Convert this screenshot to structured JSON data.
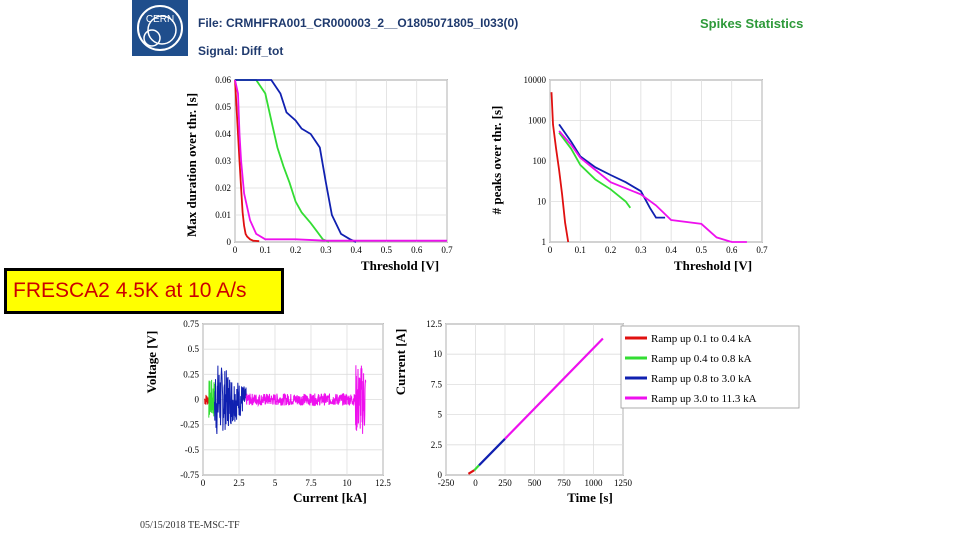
{
  "header": {
    "logo_text": "CERN",
    "file_label": "File: CRMHFRA001_CR000003_2__O1805071805_I033(0)",
    "signal_label": "Signal: Diff_tot",
    "title": "Spikes Statistics"
  },
  "banner": "FRESCA2 4.5K at 10 A/s",
  "footer": "05/15/2018  TE-MSC-TF",
  "colors": {
    "red": "#e01010",
    "green": "#33dd33",
    "blue": "#1020b0",
    "magenta": "#ee10ee"
  },
  "chart_data": [
    {
      "id": "duration",
      "type": "line",
      "xlabel": "Threshold [V]",
      "ylabel": "Max duration over thr. [s]",
      "xlim": [
        0,
        0.7
      ],
      "ylim": [
        0,
        0.06
      ],
      "xticks": [
        "0",
        "0.1",
        "0.2",
        "0.3",
        "0.4",
        "0.5",
        "0.6",
        "0.7"
      ],
      "yticks": [
        "0",
        "0.01",
        "0.02",
        "0.03",
        "0.04",
        "0.05",
        "0.06"
      ],
      "grid": true,
      "series": [
        {
          "color": "red",
          "x": [
            0,
            0.005,
            0.01,
            0.015,
            0.02,
            0.025,
            0.03,
            0.035,
            0.04,
            0.05,
            0.06,
            0.08
          ],
          "y": [
            0.06,
            0.05,
            0.04,
            0.03,
            0.02,
            0.011,
            0.006,
            0.003,
            0.002,
            0.001,
            0.0005,
            0.0003
          ]
        },
        {
          "color": "green",
          "x": [
            0,
            0.07,
            0.1,
            0.12,
            0.14,
            0.16,
            0.18,
            0.2,
            0.22,
            0.25,
            0.27,
            0.29,
            0.31
          ],
          "y": [
            0.06,
            0.06,
            0.055,
            0.045,
            0.035,
            0.028,
            0.022,
            0.015,
            0.011,
            0.007,
            0.004,
            0.001,
            0
          ]
        },
        {
          "color": "blue",
          "x": [
            0,
            0.12,
            0.15,
            0.17,
            0.2,
            0.22,
            0.25,
            0.28,
            0.3,
            0.32,
            0.35,
            0.38,
            0.4
          ],
          "y": [
            0.06,
            0.06,
            0.055,
            0.048,
            0.045,
            0.042,
            0.04,
            0.035,
            0.022,
            0.01,
            0.003,
            0.001,
            0
          ]
        },
        {
          "color": "magenta",
          "x": [
            0,
            0.01,
            0.015,
            0.02,
            0.03,
            0.05,
            0.07,
            0.1,
            0.2,
            0.3,
            0.5,
            0.7
          ],
          "y": [
            0.06,
            0.055,
            0.04,
            0.03,
            0.018,
            0.008,
            0.003,
            0.001,
            0.001,
            0.0005,
            0.0005,
            0.0005
          ]
        }
      ]
    },
    {
      "id": "peaks",
      "type": "line",
      "xlabel": "Threshold [V]",
      "ylabel": "# peaks over thr. [s]",
      "xlim": [
        0,
        0.7
      ],
      "ylim": [
        1,
        10000
      ],
      "yscale": "log",
      "xticks": [
        "0",
        "0.1",
        "0.2",
        "0.3",
        "0.4",
        "0.5",
        "0.6",
        "0.7"
      ],
      "yticks": [
        "1",
        "10",
        "100",
        "1000",
        "10000"
      ],
      "grid": true,
      "series": [
        {
          "color": "red",
          "x": [
            0.005,
            0.01,
            0.02,
            0.03,
            0.04,
            0.05,
            0.06
          ],
          "y": [
            5000,
            800,
            200,
            60,
            15,
            3,
            1
          ]
        },
        {
          "color": "green",
          "x": [
            0.03,
            0.07,
            0.1,
            0.15,
            0.2,
            0.25,
            0.265
          ],
          "y": [
            500,
            200,
            80,
            35,
            20,
            10,
            7
          ]
        },
        {
          "color": "blue",
          "x": [
            0.03,
            0.07,
            0.1,
            0.15,
            0.2,
            0.25,
            0.3,
            0.33,
            0.35,
            0.38
          ],
          "y": [
            800,
            300,
            130,
            70,
            45,
            30,
            18,
            7,
            4,
            4
          ]
        },
        {
          "color": "magenta",
          "x": [
            0.03,
            0.07,
            0.1,
            0.15,
            0.2,
            0.3,
            0.35,
            0.4,
            0.5,
            0.55,
            0.6,
            0.65
          ],
          "y": [
            550,
            250,
            120,
            60,
            30,
            15,
            8,
            3.5,
            2.8,
            1.3,
            1,
            1
          ]
        }
      ]
    },
    {
      "id": "voltage",
      "type": "line",
      "xlabel": "Current [kA]",
      "ylabel": "Voltage [V]",
      "xlim": [
        0,
        12.5
      ],
      "ylim": [
        -0.75,
        0.75
      ],
      "xticks": [
        "0",
        "2.5",
        "5",
        "7.5",
        "10",
        "12.5"
      ],
      "yticks": [
        "-0.75",
        "-0.5",
        "-0.25",
        "0",
        "0.25",
        "0.5",
        "0.75"
      ],
      "grid": true,
      "bands": [
        {
          "color": "red",
          "x": [
            0.1,
            0.4
          ],
          "amplitude": 0.06
        },
        {
          "color": "green",
          "x": [
            0.4,
            0.8
          ],
          "amplitude": 0.2
        },
        {
          "color": "blue",
          "x": [
            0.8,
            3.0
          ],
          "amplitude": 0.4
        },
        {
          "color": "magenta",
          "x": [
            3.0,
            11.3
          ],
          "amplitude": 0.25
        }
      ]
    },
    {
      "id": "current",
      "type": "line",
      "xlabel": "Time [s]",
      "ylabel": "Current [A]",
      "xlim": [
        -250,
        1250
      ],
      "ylim": [
        0,
        12.5
      ],
      "xticks": [
        "-250",
        "0",
        "250",
        "500",
        "750",
        "1000",
        "1250"
      ],
      "yticks": [
        "0",
        "2.5",
        "5",
        "7.5",
        "10",
        "12.5"
      ],
      "grid": true,
      "legend": "top-right",
      "series": [
        {
          "name": "Ramp up 0.1 to 0.4 kA",
          "color": "red",
          "x": [
            -60,
            -10
          ],
          "y": [
            0.1,
            0.4
          ]
        },
        {
          "name": "Ramp up 0.4 to 0.8 kA",
          "color": "green",
          "x": [
            -10,
            30
          ],
          "y": [
            0.4,
            0.8
          ]
        },
        {
          "name": "Ramp up 0.8 to 3.0 kA",
          "color": "blue",
          "x": [
            30,
            250
          ],
          "y": [
            0.8,
            3.0
          ]
        },
        {
          "name": "Ramp up 3.0 to 11.3 kA",
          "color": "magenta",
          "x": [
            250,
            1080
          ],
          "y": [
            3.0,
            11.3
          ]
        }
      ]
    }
  ]
}
